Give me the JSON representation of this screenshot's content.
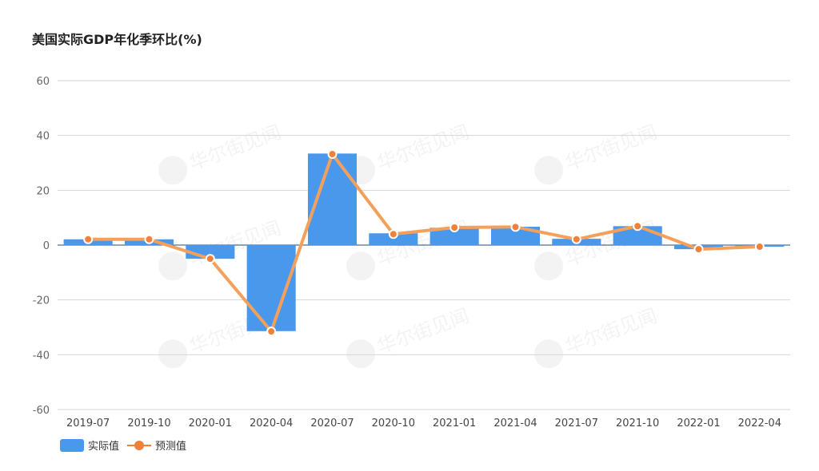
{
  "chart_data": {
    "type": "bar",
    "title": "美国实际GDP年化季环比(%)",
    "categories": [
      "2019-07",
      "2019-10",
      "2020-01",
      "2020-04",
      "2020-07",
      "2020-10",
      "2021-01",
      "2021-04",
      "2021-07",
      "2021-10",
      "2022-01",
      "2022-04"
    ],
    "series": [
      {
        "name": "实际值",
        "type": "bar",
        "color": "#4a98eb",
        "values": [
          2.1,
          2.1,
          -5.0,
          -31.4,
          33.4,
          4.3,
          6.3,
          6.7,
          2.3,
          6.9,
          -1.5,
          -0.6
        ]
      },
      {
        "name": "预测值",
        "type": "line",
        "color": "#f5a05a",
        "marker_color": "#f0803a",
        "values": [
          2.1,
          2.1,
          -5.0,
          -31.5,
          33.2,
          4.0,
          6.4,
          6.6,
          2.1,
          6.9,
          -1.5,
          -0.6
        ]
      }
    ],
    "ylim": [
      -60,
      60
    ],
    "yticks": [
      60,
      40,
      20,
      0,
      -20,
      -40,
      -60
    ],
    "grid": true,
    "legend_position": "bottom-left",
    "xlabel": "",
    "ylabel": ""
  },
  "watermark": "华尔街见闻"
}
